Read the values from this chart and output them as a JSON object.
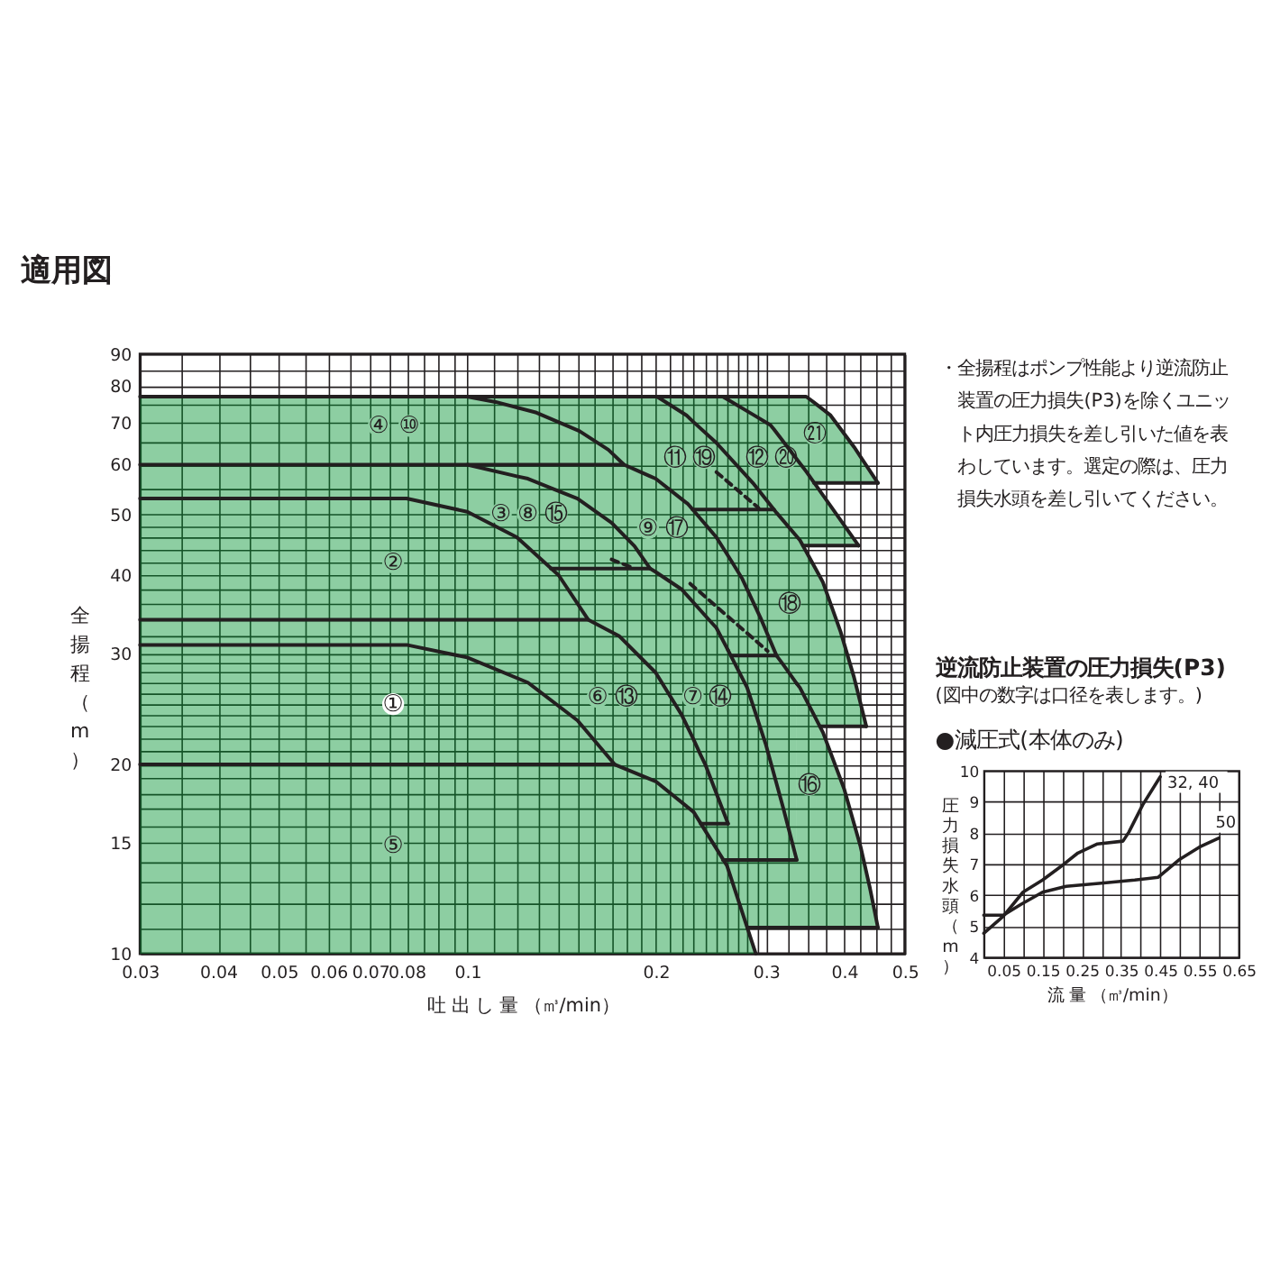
{
  "chart_data": [
    {
      "type": "line",
      "title": "適用図",
      "xlabel": "吐 出 し 量 （㎥/min）",
      "ylabel": "全揚程（m）",
      "log": "xy",
      "grid": true,
      "xlim": [
        0.03,
        0.5
      ],
      "ylim": [
        10,
        90
      ],
      "xticks": [
        0.03,
        {
          "value": 0.035,
          "label": null
        },
        0.04,
        {
          "value": 0.045,
          "label": null
        },
        0.05,
        {
          "value": 0.055,
          "label": null
        },
        0.06,
        {
          "value": 0.065,
          "label": null
        },
        0.07,
        {
          "value": 0.075,
          "label": null
        },
        0.08,
        {
          "value": 0.085,
          "label": null
        },
        {
          "value": 0.09,
          "label": null
        },
        {
          "value": 0.095,
          "label": null
        },
        0.1,
        {
          "value": 0.11,
          "label": null
        },
        {
          "value": 0.12,
          "label": null
        },
        {
          "value": 0.13,
          "label": null
        },
        {
          "value": 0.14,
          "label": null
        },
        {
          "value": 0.15,
          "label": null
        },
        {
          "value": 0.16,
          "label": null
        },
        {
          "value": 0.17,
          "label": null
        },
        {
          "value": 0.18,
          "label": null
        },
        {
          "value": 0.19,
          "label": null
        },
        0.2,
        {
          "value": 0.21,
          "label": null
        },
        {
          "value": 0.22,
          "label": null
        },
        {
          "value": 0.23,
          "label": null
        },
        {
          "value": 0.24,
          "label": null
        },
        {
          "value": 0.25,
          "label": null
        },
        {
          "value": 0.26,
          "label": null
        },
        {
          "value": 0.27,
          "label": null
        },
        {
          "value": 0.28,
          "label": null
        },
        {
          "value": 0.29,
          "label": null
        },
        0.3,
        {
          "value": 0.325,
          "label": null
        },
        {
          "value": 0.35,
          "label": null
        },
        {
          "value": 0.375,
          "label": null
        },
        0.4,
        {
          "value": 0.425,
          "label": null
        },
        {
          "value": 0.45,
          "label": null
        },
        {
          "value": 0.475,
          "label": null
        },
        0.5
      ],
      "yticks": [
        10,
        {
          "value": 11,
          "label": null
        },
        {
          "value": 12,
          "label": null
        },
        {
          "value": 13,
          "label": null
        },
        {
          "value": 14,
          "label": null
        },
        15,
        {
          "value": 16,
          "label": null
        },
        {
          "value": 17,
          "label": null
        },
        {
          "value": 18,
          "label": null
        },
        {
          "value": 19,
          "label": null
        },
        20,
        {
          "value": 21,
          "label": null
        },
        {
          "value": 22,
          "label": null
        },
        {
          "value": 23,
          "label": null
        },
        {
          "value": 24,
          "label": null
        },
        {
          "value": 25,
          "label": null
        },
        {
          "value": 26,
          "label": null
        },
        {
          "value": 27,
          "label": null
        },
        {
          "value": 28,
          "label": null
        },
        {
          "value": 29,
          "label": null
        },
        30,
        {
          "value": 32,
          "label": null
        },
        {
          "value": 34,
          "label": null
        },
        {
          "value": 36,
          "label": null
        },
        {
          "value": 38,
          "label": null
        },
        40,
        {
          "value": 42,
          "label": null
        },
        {
          "value": 44,
          "label": null
        },
        {
          "value": 46,
          "label": null
        },
        {
          "value": 48,
          "label": null
        },
        50,
        {
          "value": 55,
          "label": null
        },
        60,
        {
          "value": 65,
          "label": null
        },
        70,
        {
          "value": 75,
          "label": null
        },
        80,
        {
          "value": 85,
          "label": null
        },
        90
      ],
      "series": [
        {
          "color": "#231f20",
          "x": [
            0.03,
            0.08,
            0.1,
            0.125,
            0.15,
            0.172
          ],
          "values": [
            31,
            31,
            29.6,
            27,
            23.5,
            20
          ],
          "lower": [
            20,
            20,
            20,
            20,
            20,
            20
          ],
          "upper": [
            31,
            31,
            29.6,
            27,
            23.5,
            20
          ]
        },
        {
          "color": "#231f20",
          "x": [
            0.03,
            0.172,
            0.2,
            0.23,
            0.26,
            0.289
          ],
          "values": [
            20,
            20,
            18.8,
            16.8,
            13.8,
            10
          ],
          "lower": [
            10,
            10,
            10,
            10,
            10,
            10
          ],
          "upper": [
            20,
            20,
            18.8,
            16.8,
            13.8,
            10
          ]
        },
        {
          "color": "#231f20",
          "x": [
            0.03,
            0.08,
            0.1,
            0.12,
            0.14,
            0.156
          ],
          "values": [
            53,
            53,
            50.5,
            46,
            40,
            34
          ],
          "lower": [
            34,
            34,
            34,
            34,
            34,
            34
          ],
          "upper": [
            53,
            53,
            50.5,
            46,
            40,
            34
          ]
        },
        {
          "color": "#231f20",
          "x": [
            0.03,
            0.08,
            0.1,
            0.125,
            0.15,
            0.156,
            0.172,
            0.175,
            0.2,
            0.22,
            0.23,
            0.236,
            0.24,
            0.261
          ],
          "values": [
            34,
            34,
            34,
            34,
            34,
            34,
            32.3,
            32,
            28,
            24,
            21.9,
            20.7,
            20,
            16.1
          ],
          "lower": [
            31,
            31,
            29.6,
            27,
            23.5,
            22.4,
            20,
            19.9,
            18.8,
            17.4,
            16.8,
            16.1,
            16.1,
            16.1
          ],
          "upper": [
            34,
            34,
            34,
            34,
            34,
            34,
            32.3,
            32,
            28,
            24,
            21.9,
            20.7,
            20,
            16.1
          ]
        },
        {
          "color": "#231f20",
          "x": [
            0.03,
            0.08,
            0.1,
            0.12,
            0.125,
            0.136,
            0.15,
            0.17,
            0.185,
            0.196
          ],
          "values": [
            60,
            60,
            60,
            57.5,
            57,
            55.1,
            53,
            48.5,
            44.5,
            41
          ],
          "lower": [
            53,
            53,
            50.5,
            46,
            44.3,
            41,
            41,
            41,
            41,
            41
          ],
          "upper": [
            60,
            60,
            60,
            57.5,
            57,
            55.1,
            53,
            48.5,
            44.5,
            41
          ]
        },
        {
          "color": "#231f20",
          "x": [
            0.03,
            0.1,
            0.111,
            0.129,
            0.151,
            0.168,
            0.178
          ],
          "values": [
            77,
            77,
            75.5,
            72.6,
            67.9,
            63.4,
            60
          ],
          "lower": [
            60,
            60,
            60,
            60,
            60,
            60,
            60
          ],
          "upper": [
            77,
            77,
            75.5,
            72.6,
            67.9,
            63.4,
            60
          ]
        },
        {
          "color": "#231f20",
          "x": [
            0.136,
            0.14,
            0.156,
            0.175,
            0.196,
            0.2,
            0.22,
            0.24,
            0.25,
            0.261
          ],
          "values": [
            41,
            41,
            41,
            41,
            41,
            40.5,
            38,
            34.5,
            33,
            30.4
          ],
          "lower": [
            41,
            40,
            34,
            32,
            28.6,
            28,
            24,
            20,
            18,
            16.1
          ],
          "upper": [
            41,
            41,
            41,
            41,
            41,
            40.5,
            38,
            34.5,
            33,
            30.4
          ]
        },
        {
          "color": "#231f20",
          "x": [
            0.236,
            0.256,
            0.261,
            0.261,
            0.261,
            0.28,
            0.3,
            0.32,
            0.336
          ],
          "values": [
            16.1,
            16.1,
            16.1,
            null,
            30.4,
            26.5,
            21.5,
            17,
            14.1
          ],
          "lower": [
            16.1,
            14.1,
            14.1,
            14.1,
            14.1,
            14.1,
            14.1,
            14.1,
            14.1
          ],
          "upper": [
            16.1,
            16.1,
            16.1,
            16.1,
            30.4,
            26.5,
            21.5,
            17,
            14.1
          ]
        },
        {
          "color": "#231f20",
          "x": [
            0.1,
            0.125,
            0.15,
            0.17,
            0.178,
            0.185,
            0.196,
            0.2,
            0.22,
            0.225,
            0.25,
            0.264,
            0.275,
            0.295,
            0.312
          ],
          "values": [
            60,
            60,
            60,
            60,
            60,
            59,
            57.5,
            57,
            52.9,
            52,
            46,
            42.2,
            39.5,
            34,
            29.8
          ],
          "lower": [
            60,
            57,
            53,
            48.5,
            46.3,
            44.5,
            41,
            40.5,
            38,
            37.1,
            33,
            29.8,
            29.8,
            29.8,
            29.8
          ],
          "upper": [
            60,
            60,
            60,
            60,
            60,
            59,
            57.5,
            57,
            52.9,
            52,
            46,
            42.2,
            39.5,
            34,
            29.8
          ]
        },
        {
          "color": "#231f20",
          "x": [
            0.256,
            0.26,
            0.28,
            0.336,
            0.336,
            0.336,
            0.34,
            0.37,
            0.4,
            0.425,
            0.44,
            0.453
          ],
          "values": [
            14.1,
            14.1,
            14.1,
            14.1,
            null,
            26.9,
            26.5,
            22.5,
            18.3,
            14.8,
            12.7,
            11
          ],
          "lower": [
            14.1,
            13.8,
            11,
            11,
            11,
            11,
            11,
            11,
            11,
            11,
            11,
            11
          ],
          "upper": [
            14.1,
            14.1,
            14.1,
            14.1,
            14.1,
            26.9,
            26.5,
            22.5,
            18.3,
            14.8,
            12.7,
            11
          ]
        },
        {
          "color": "#231f20",
          "x": [
            0.264,
            0.28,
            0.3,
            0.312,
            0.32,
            0.336
          ],
          "values": [
            29.8,
            29.8,
            29.8,
            29.8,
            28.8,
            26.9
          ],
          "lower": [
            29.8,
            26.5,
            21.5,
            18.6,
            17,
            14.1
          ],
          "upper": [
            29.8,
            29.8,
            29.8,
            29.8,
            28.8,
            26.9
          ]
        },
        {
          "color": "#231f20",
          "x": [
            0.229,
            0.25,
            0.275,
            0.295,
            0.309,
            0.312,
            0.34,
            0.366,
            0.37,
            0.395,
            0.415,
            0.434
          ],
          "values": [
            50.9,
            50.9,
            50.9,
            50.9,
            50.9,
            50.3,
            45.5,
            39.8,
            39,
            32.5,
            27.5,
            23
          ],
          "lower": [
            50.9,
            46,
            39.5,
            34,
            30.5,
            29.8,
            26.5,
            23,
            23,
            23,
            23,
            23
          ],
          "upper": [
            50.9,
            50.9,
            50.9,
            50.9,
            50.9,
            50.3,
            45.5,
            39.8,
            39,
            32.5,
            27.5,
            23
          ]
        },
        {
          "color": "#231f20",
          "x": [
            0.1,
            0.111,
            0.129,
            0.151,
            0.168,
            0.178,
            0.2,
            0.201,
            0.224,
            0.229,
            0.25,
            0.286,
            0.309
          ],
          "values": [
            77,
            77,
            77,
            77,
            77,
            77,
            77,
            77,
            71.9,
            70.4,
            65,
            56.1,
            50.9
          ],
          "lower": [
            77,
            75.5,
            72.6,
            67.9,
            63.4,
            60,
            57,
            56.8,
            52.2,
            50.9,
            50.9,
            50.9,
            50.9
          ],
          "upper": [
            77,
            77,
            77,
            77,
            77,
            77,
            77,
            77,
            71.9,
            70.4,
            65,
            56.1,
            50.9
          ]
        },
        {
          "color": "#231f20",
          "x": [
            0.201,
            0.224,
            0.25,
            0.256,
            0.286,
            0.305,
            0.309,
            0.34,
            0.344,
            0.348,
            0.38,
            0.422
          ],
          "values": [
            77,
            77,
            77,
            77,
            72.1,
            69.4,
            68.3,
            60.3,
            59.4,
            58.5,
            51.7,
            44.6
          ],
          "lower": [
            77,
            71.9,
            65,
            63.3,
            56.1,
            51.8,
            50.9,
            45.5,
            44.6,
            44.6,
            44.6,
            44.6
          ],
          "upper": [
            77,
            77,
            77,
            77,
            72.1,
            69.4,
            68.3,
            60.3,
            59.4,
            58.5,
            51.7,
            44.6
          ]
        },
        {
          "color": "#231f20",
          "x": [
            0.256,
            0.305,
            0.348,
            0.358,
            0.38,
            0.415,
            0.453
          ],
          "values": [
            77,
            77,
            77,
            75.4,
            72,
            64,
            56.1
          ],
          "lower": [
            77,
            69.4,
            58.5,
            56.1,
            56.1,
            56.1,
            56.1
          ],
          "upper": [
            77,
            77,
            77,
            75.4,
            72,
            64,
            56.1
          ]
        },
        {
          "color": "#231f20",
          "x": [
            0.358,
            0.453
          ],
          "values": [
            56.1,
            56.1
          ]
        },
        {
          "color": "#231f20",
          "x": [
            0.344,
            0.422
          ],
          "values": [
            44.6,
            44.6
          ]
        },
        {
          "color": "#231f20",
          "x": [
            0.366,
            0.434
          ],
          "values": [
            23,
            23
          ]
        },
        {
          "color": "#231f20",
          "x": [
            0.28,
            0.453
          ],
          "values": [
            11,
            11
          ]
        },
        {
          "color": "#231f20",
          "line_style": "dashed",
          "x": [
            0.25,
            0.292
          ],
          "values": [
            58.4,
            51.2
          ]
        },
        {
          "color": "#231f20",
          "line_style": "dashed",
          "x": [
            0.227,
            0.302
          ],
          "values": [
            38.8,
            30.3
          ]
        },
        {
          "color": "#231f20",
          "line_style": "dashed",
          "x": [
            0.17,
            0.184
          ],
          "values": [
            42.4,
            41.1
          ]
        }
      ],
      "annotations": [
        "④",
        "⑩",
        "②",
        "①",
        "⑤",
        "③",
        "⑧",
        "⑮",
        "⑨",
        "⑰",
        "⑪",
        "⑲",
        "⑫",
        "⑳",
        "㉑",
        "⑱",
        "⑥",
        "⑬",
        "⑦",
        "⑭",
        "⑯",
        "・全揚程はポンプ性能より逆流防止装置の圧力損失(P3)を除くユニット内圧力損失を差し引いた値を表わしています。選定の際は、圧力損失水頭を差し引いてください。"
      ]
    },
    {
      "type": "line",
      "title": "逆流防止装置の圧力損失(P3)",
      "subtitle": "(図中の数字は口径を表します。)",
      "xlabel": "流 量 （㎥/min）",
      "ylabel": "圧力損失水頭（m）",
      "grid": true,
      "xlim": [
        0,
        0.65
      ],
      "ylim": [
        4,
        10
      ],
      "xticks": [
        0.05,
        {
          "value": 0.1,
          "label": null
        },
        0.15,
        {
          "value": 0.2,
          "label": null
        },
        0.25,
        {
          "value": 0.3,
          "label": null
        },
        0.35,
        {
          "value": 0.4,
          "label": null
        },
        0.45,
        {
          "value": 0.5,
          "label": null
        },
        0.55,
        {
          "value": 0.6,
          "label": null
        },
        0.65
      ],
      "yticks": [
        4,
        5,
        6,
        7,
        8,
        9,
        10
      ],
      "series": [
        {
          "name": "32, 40",
          "color": "#231f20",
          "x": [
            0,
            0.05,
            0.1,
            0.15,
            0.195,
            0.24,
            0.29,
            0.355,
            0.37,
            0.405,
            0.45
          ],
          "values": [
            4.77,
            5.32,
            6.09,
            6.48,
            6.9,
            7.35,
            7.64,
            7.73,
            8.02,
            8.89,
            9.8
          ]
        },
        {
          "name": "50",
          "color": "#231f20",
          "x": [
            0,
            0.05,
            0.095,
            0.15,
            0.21,
            0.3,
            0.385,
            0.445,
            0.5,
            0.55,
            0.6
          ],
          "values": [
            5.35,
            5.35,
            5.7,
            6.09,
            6.28,
            6.38,
            6.48,
            6.57,
            7.15,
            7.54,
            7.83
          ]
        }
      ],
      "annotations": [
        "●減圧式(本体のみ)"
      ]
    }
  ]
}
